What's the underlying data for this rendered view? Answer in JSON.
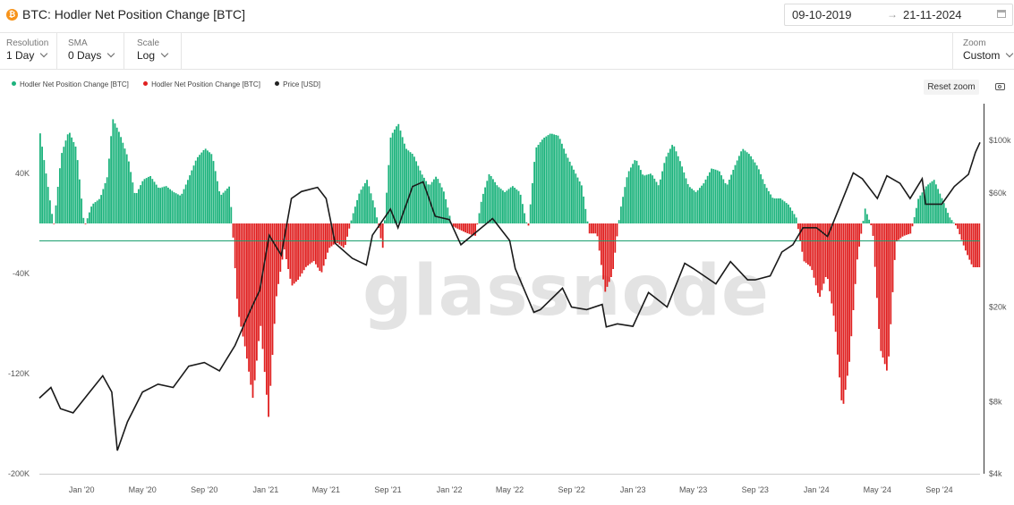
{
  "header": {
    "icon": "bitcoin-icon",
    "title": "BTC: Hodler Net Position Change [BTC]",
    "date_from": "09-10-2019",
    "date_arrow": "→",
    "date_to": "21-11-2024"
  },
  "controls": {
    "resolution": {
      "label": "Resolution",
      "value": "1 Day"
    },
    "sma": {
      "label": "SMA",
      "value": "0 Days"
    },
    "scale": {
      "label": "Scale",
      "value": "Log"
    },
    "zoom": {
      "label": "Zoom",
      "value": "Custom"
    }
  },
  "legend": [
    {
      "label": "Hodler Net Position Change [BTC]",
      "color": "#1db37d"
    },
    {
      "label": "Hodler Net Position Change [BTC]",
      "color": "#e02020"
    },
    {
      "label": "Price [USD]",
      "color": "#222222"
    }
  ],
  "reset_zoom": "Reset zoom",
  "watermark": "glassnode",
  "colors": {
    "positive": "#1db37d",
    "negative": "#e02020",
    "price": "#1a1a1a"
  },
  "chart_data": {
    "type": "bar",
    "left_axis": {
      "ticks": [
        40000,
        -40000,
        -120000,
        -200000
      ],
      "labels": [
        "40K",
        "-40K",
        "-120K",
        "-200K"
      ],
      "range": [
        -200000,
        100000
      ]
    },
    "right_axis": {
      "scale": "log",
      "ticks": [
        100000,
        60000,
        20000,
        8000,
        4000
      ],
      "labels": [
        "$100k",
        "$60k",
        "$20k",
        "$8k",
        "$4k"
      ],
      "range": [
        4000,
        150000
      ]
    },
    "x_ticks": [
      "Jan '20",
      "May '20",
      "Sep '20",
      "Jan '21",
      "May '21",
      "Sep '21",
      "Jan '22",
      "May '22",
      "Sep '22",
      "Jan '23",
      "May '23",
      "Sep '23",
      "Jan '24",
      "May '24",
      "Sep '24"
    ],
    "x_range": [
      "2019-10-09",
      "2024-11-21"
    ],
    "series": [
      {
        "name": "Hodler Net Position Change [BTC]",
        "kind": "bar",
        "x": [
          "2019-10-09",
          "2019-10-20",
          "2019-11-05",
          "2019-11-20",
          "2019-12-05",
          "2019-12-20",
          "2020-01-05",
          "2020-01-20",
          "2020-02-05",
          "2020-02-20",
          "2020-03-01",
          "2020-03-15",
          "2020-04-01",
          "2020-04-15",
          "2020-05-01",
          "2020-05-15",
          "2020-06-01",
          "2020-06-15",
          "2020-07-01",
          "2020-07-15",
          "2020-08-01",
          "2020-08-15",
          "2020-09-01",
          "2020-09-15",
          "2020-10-01",
          "2020-10-20",
          "2020-11-05",
          "2020-11-20",
          "2020-12-05",
          "2020-12-20",
          "2021-01-05",
          "2021-01-20",
          "2021-02-05",
          "2021-02-20",
          "2021-03-05",
          "2021-03-20",
          "2021-04-05",
          "2021-04-20",
          "2021-05-05",
          "2021-05-20",
          "2021-06-05",
          "2021-06-20",
          "2021-07-05",
          "2021-07-20",
          "2021-08-05",
          "2021-08-20",
          "2021-09-05",
          "2021-09-20",
          "2021-10-05",
          "2021-10-20",
          "2021-11-05",
          "2021-11-20",
          "2021-12-05",
          "2021-12-20",
          "2022-01-05",
          "2022-01-20",
          "2022-02-05",
          "2022-02-20",
          "2022-03-05",
          "2022-03-20",
          "2022-04-05",
          "2022-04-20",
          "2022-05-05",
          "2022-05-20",
          "2022-06-05",
          "2022-06-20",
          "2022-07-05",
          "2022-07-20",
          "2022-08-05",
          "2022-08-20",
          "2022-09-05",
          "2022-09-20",
          "2022-10-05",
          "2022-10-20",
          "2022-11-05",
          "2022-11-20",
          "2022-12-05",
          "2022-12-20",
          "2023-01-05",
          "2023-01-20",
          "2023-02-05",
          "2023-02-20",
          "2023-03-05",
          "2023-03-20",
          "2023-04-05",
          "2023-04-20",
          "2023-05-05",
          "2023-05-20",
          "2023-06-05",
          "2023-06-20",
          "2023-07-05",
          "2023-07-20",
          "2023-08-05",
          "2023-08-20",
          "2023-09-05",
          "2023-09-20",
          "2023-10-05",
          "2023-10-20",
          "2023-11-05",
          "2023-11-20",
          "2023-12-05",
          "2023-12-20",
          "2024-01-05",
          "2024-01-20",
          "2024-02-05",
          "2024-02-20",
          "2024-03-05",
          "2024-03-20",
          "2024-04-05",
          "2024-04-20",
          "2024-05-05",
          "2024-05-20",
          "2024-06-05",
          "2024-06-20",
          "2024-07-05",
          "2024-07-20",
          "2024-08-05",
          "2024-08-20",
          "2024-09-05",
          "2024-09-20",
          "2024-10-05",
          "2024-10-20",
          "2024-11-05",
          "2024-11-21"
        ],
        "y": [
          72000,
          42000,
          -2000,
          55000,
          74000,
          60000,
          -3000,
          15000,
          20000,
          38000,
          84000,
          72000,
          52000,
          22000,
          35000,
          38000,
          28000,
          30000,
          25000,
          22000,
          38000,
          52000,
          60000,
          55000,
          22000,
          30000,
          -70000,
          -100000,
          -140000,
          -80000,
          -155000,
          -60000,
          -20000,
          -50000,
          -45000,
          -35000,
          -30000,
          -40000,
          -20000,
          -15000,
          -20000,
          5000,
          25000,
          35000,
          12000,
          -20000,
          70000,
          80000,
          60000,
          55000,
          40000,
          30000,
          38000,
          25000,
          -2000,
          -5000,
          -8000,
          -10000,
          20000,
          40000,
          30000,
          25000,
          30000,
          25000,
          -5000,
          60000,
          68000,
          72000,
          70000,
          55000,
          42000,
          30000,
          -8000,
          -8000,
          -55000,
          -40000,
          10000,
          40000,
          52000,
          38000,
          40000,
          30000,
          52000,
          64000,
          48000,
          30000,
          25000,
          32000,
          44000,
          42000,
          30000,
          45000,
          60000,
          55000,
          45000,
          30000,
          20000,
          20000,
          15000,
          5000,
          -30000,
          -35000,
          -60000,
          -40000,
          -80000,
          -150000,
          -110000,
          -30000,
          12000,
          -5000,
          -100000,
          -120000,
          -15000,
          -10000,
          -8000,
          20000,
          30000,
          35000,
          20000,
          5000,
          -3000,
          -20000,
          -35000,
          -35000
        ]
      },
      {
        "name": "Price [USD]",
        "kind": "line",
        "x": [
          "2019-10-09",
          "2019-11-01",
          "2019-11-20",
          "2019-12-15",
          "2020-01-15",
          "2020-02-12",
          "2020-03-01",
          "2020-03-12",
          "2020-04-01",
          "2020-05-01",
          "2020-06-01",
          "2020-07-01",
          "2020-08-01",
          "2020-09-01",
          "2020-10-01",
          "2020-11-01",
          "2020-12-01",
          "2020-12-20",
          "2021-01-08",
          "2021-02-01",
          "2021-02-21",
          "2021-03-13",
          "2021-04-14",
          "2021-05-01",
          "2021-05-19",
          "2021-06-22",
          "2021-07-20",
          "2021-08-01",
          "2021-09-06",
          "2021-09-21",
          "2021-10-20",
          "2021-11-10",
          "2021-12-04",
          "2022-01-01",
          "2022-01-24",
          "2022-03-28",
          "2022-05-01",
          "2022-05-12",
          "2022-06-18",
          "2022-07-01",
          "2022-08-14",
          "2022-09-01",
          "2022-10-01",
          "2022-11-01",
          "2022-11-09",
          "2022-12-01",
          "2023-01-01",
          "2023-02-01",
          "2023-03-10",
          "2023-04-14",
          "2023-05-01",
          "2023-06-15",
          "2023-07-14",
          "2023-08-17",
          "2023-09-01",
          "2023-10-01",
          "2023-10-24",
          "2023-11-15",
          "2023-12-05",
          "2024-01-01",
          "2024-01-23",
          "2024-02-15",
          "2024-03-14",
          "2024-04-01",
          "2024-05-01",
          "2024-05-20",
          "2024-06-15",
          "2024-07-05",
          "2024-07-29",
          "2024-08-05",
          "2024-09-06",
          "2024-10-01",
          "2024-10-29",
          "2024-11-12",
          "2024-11-21"
        ],
        "y": [
          8300,
          9200,
          7500,
          7200,
          8700,
          10300,
          8800,
          5000,
          6600,
          8800,
          9500,
          9200,
          11300,
          11700,
          10800,
          13800,
          19300,
          23500,
          40000,
          33000,
          57000,
          61000,
          63500,
          57000,
          37000,
          32000,
          30000,
          40000,
          51500,
          43000,
          64000,
          67000,
          48000,
          46500,
          36500,
          47000,
          38000,
          29000,
          19000,
          19500,
          24000,
          20000,
          19500,
          20500,
          16500,
          17000,
          16600,
          23000,
          20000,
          30500,
          29000,
          25000,
          31000,
          26000,
          26000,
          27000,
          34000,
          36500,
          43000,
          43000,
          39500,
          52000,
          73000,
          69000,
          57000,
          71000,
          66000,
          57000,
          69000,
          54000,
          54000,
          64000,
          72000,
          89000,
          98000
        ]
      }
    ]
  }
}
